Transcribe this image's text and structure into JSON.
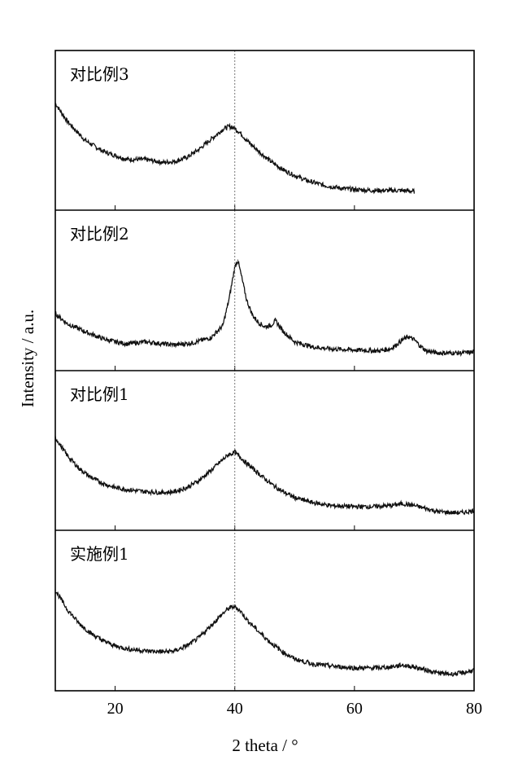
{
  "chart_data": {
    "type": "line",
    "title": "",
    "xlabel": "2 theta / °",
    "ylabel": "Intensity / a.u.",
    "xlim": [
      10,
      80
    ],
    "xticks": [
      20,
      40,
      60,
      80
    ],
    "xtick_labels": [
      "20",
      "40",
      "60",
      "80"
    ],
    "reference_line_x": 40,
    "y_units": "arbitrary",
    "grid": false,
    "stacked_panels": true,
    "series": [
      {
        "name": "对比例3",
        "x": [
          10,
          12,
          15,
          18,
          20,
          22,
          25,
          28,
          30,
          32,
          34,
          36,
          38,
          39,
          40,
          41,
          42,
          44,
          46,
          48,
          50,
          52,
          55,
          58,
          60,
          63,
          66,
          68,
          70
        ],
        "y": [
          0.92,
          0.74,
          0.55,
          0.44,
          0.4,
          0.36,
          0.36,
          0.33,
          0.34,
          0.38,
          0.46,
          0.56,
          0.66,
          0.69,
          0.67,
          0.62,
          0.55,
          0.44,
          0.34,
          0.26,
          0.2,
          0.15,
          0.1,
          0.07,
          0.06,
          0.05,
          0.05,
          0.05,
          0.04
        ]
      },
      {
        "name": "对比例2",
        "x": [
          10,
          12,
          15,
          18,
          20,
          22,
          25,
          28,
          30,
          33,
          36,
          38,
          39,
          40,
          40.5,
          41,
          42,
          43,
          44,
          45,
          46,
          46.8,
          48,
          50,
          53,
          56,
          60,
          64,
          66,
          67,
          68,
          69,
          70,
          71,
          72,
          74,
          76,
          78,
          80
        ],
        "y": [
          0.42,
          0.32,
          0.24,
          0.17,
          0.14,
          0.12,
          0.14,
          0.12,
          0.11,
          0.13,
          0.18,
          0.3,
          0.55,
          0.88,
          0.95,
          0.82,
          0.55,
          0.4,
          0.33,
          0.29,
          0.3,
          0.35,
          0.25,
          0.14,
          0.09,
          0.07,
          0.06,
          0.05,
          0.07,
          0.11,
          0.16,
          0.19,
          0.16,
          0.1,
          0.05,
          0.03,
          0.03,
          0.03,
          0.04
        ]
      },
      {
        "name": "对比例1",
        "x": [
          10,
          12,
          14,
          16,
          18,
          20,
          22,
          25,
          28,
          30,
          32,
          34,
          36,
          38,
          39,
          40,
          41,
          42,
          44,
          46,
          48,
          50,
          53,
          56,
          60,
          63,
          66,
          68,
          70,
          72,
          74,
          76,
          78,
          80
        ],
        "y": [
          0.78,
          0.6,
          0.47,
          0.38,
          0.32,
          0.28,
          0.26,
          0.24,
          0.23,
          0.24,
          0.28,
          0.35,
          0.45,
          0.56,
          0.61,
          0.63,
          0.58,
          0.52,
          0.42,
          0.32,
          0.24,
          0.18,
          0.13,
          0.1,
          0.09,
          0.09,
          0.1,
          0.12,
          0.1,
          0.07,
          0.04,
          0.03,
          0.03,
          0.05
        ]
      },
      {
        "name": "实施例1",
        "x": [
          10,
          12,
          14,
          16,
          18,
          20,
          22,
          25,
          28,
          30,
          32,
          34,
          36,
          38,
          39,
          40,
          41,
          42,
          44,
          46,
          48,
          50,
          53,
          56,
          60,
          63,
          66,
          68,
          70,
          72,
          74,
          76,
          78,
          80
        ],
        "y": [
          0.85,
          0.66,
          0.52,
          0.42,
          0.35,
          0.3,
          0.27,
          0.25,
          0.24,
          0.25,
          0.3,
          0.38,
          0.5,
          0.62,
          0.67,
          0.69,
          0.64,
          0.56,
          0.44,
          0.33,
          0.24,
          0.17,
          0.12,
          0.1,
          0.08,
          0.08,
          0.09,
          0.11,
          0.09,
          0.06,
          0.03,
          0.02,
          0.03,
          0.06
        ]
      }
    ]
  }
}
